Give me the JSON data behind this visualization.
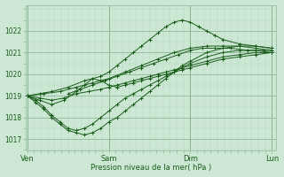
{
  "title": "",
  "xlabel": "Pression niveau de la mer( hPa )",
  "ylabel": "",
  "bg_color": "#cce8d4",
  "grid_color_major": "#8cb898",
  "grid_color_minor": "#aed4b6",
  "line_color": "#1a5c1a",
  "marker_color": "#1a5c1a",
  "ylim": [
    1016.5,
    1023.2
  ],
  "yticks": [
    1017,
    1018,
    1019,
    1020,
    1021,
    1022
  ],
  "xticks": [
    0,
    1,
    2,
    3
  ],
  "xticklabels": [
    "Ven",
    "Sam",
    "Dim",
    "Lun"
  ],
  "series": [
    {
      "x": [
        0,
        0.1,
        0.2,
        0.3,
        0.4,
        0.5,
        0.6,
        0.7,
        0.8,
        0.9,
        1.0,
        1.1,
        1.2,
        1.3,
        1.4,
        1.5,
        1.6,
        1.7,
        1.8,
        1.9,
        2.0,
        2.2,
        2.4,
        2.6,
        2.8,
        3.0
      ],
      "y": [
        1019.0,
        1018.7,
        1018.4,
        1018.0,
        1017.7,
        1017.4,
        1017.3,
        1017.2,
        1017.3,
        1017.5,
        1017.8,
        1018.0,
        1018.3,
        1018.6,
        1018.9,
        1019.2,
        1019.5,
        1019.8,
        1020.1,
        1020.4,
        1020.6,
        1021.0,
        1021.2,
        1021.3,
        1021.3,
        1021.2
      ]
    },
    {
      "x": [
        0,
        0.1,
        0.2,
        0.3,
        0.4,
        0.5,
        0.6,
        0.7,
        0.8,
        0.9,
        1.0,
        1.1,
        1.2,
        1.3,
        1.4,
        1.5,
        1.6,
        1.7,
        1.8,
        1.9,
        2.0,
        2.2,
        2.4,
        2.6,
        2.8,
        3.0
      ],
      "y": [
        1019.0,
        1018.8,
        1018.5,
        1018.1,
        1017.8,
        1017.5,
        1017.4,
        1017.5,
        1017.7,
        1018.0,
        1018.3,
        1018.6,
        1018.9,
        1019.1,
        1019.3,
        1019.5,
        1019.7,
        1019.9,
        1020.1,
        1020.3,
        1020.5,
        1020.8,
        1021.0,
        1021.1,
        1021.1,
        1021.0
      ]
    },
    {
      "x": [
        0,
        0.15,
        0.3,
        0.45,
        0.6,
        0.7,
        0.8,
        0.9,
        1.0,
        1.1,
        1.2,
        1.3,
        1.4,
        1.5,
        1.6,
        1.7,
        1.8,
        1.9,
        2.0,
        2.2,
        2.4,
        2.6,
        2.8,
        3.0
      ],
      "y": [
        1019.0,
        1018.8,
        1018.6,
        1018.8,
        1019.2,
        1019.5,
        1019.8,
        1019.7,
        1019.5,
        1019.4,
        1019.5,
        1019.6,
        1019.7,
        1019.8,
        1019.9,
        1020.0,
        1020.1,
        1020.2,
        1020.3,
        1020.5,
        1020.7,
        1020.8,
        1020.9,
        1021.0
      ]
    },
    {
      "x": [
        0,
        0.15,
        0.3,
        0.45,
        0.6,
        0.75,
        0.9,
        1.0,
        1.1,
        1.2,
        1.3,
        1.4,
        1.5,
        1.6,
        1.7,
        1.8,
        1.9,
        2.0,
        2.2,
        2.4,
        2.6,
        2.8,
        3.0
      ],
      "y": [
        1019.0,
        1018.9,
        1018.8,
        1018.9,
        1019.1,
        1019.2,
        1019.3,
        1019.4,
        1019.5,
        1019.6,
        1019.7,
        1019.8,
        1019.9,
        1020.0,
        1020.1,
        1020.2,
        1020.3,
        1020.4,
        1020.6,
        1020.8,
        1020.9,
        1021.0,
        1021.0
      ]
    },
    {
      "x": [
        0,
        0.15,
        0.3,
        0.5,
        0.7,
        0.9,
        1.0,
        1.1,
        1.2,
        1.3,
        1.4,
        1.5,
        1.6,
        1.7,
        1.8,
        1.9,
        2.0,
        2.1,
        2.2,
        2.3,
        2.4,
        2.6,
        2.8,
        3.0
      ],
      "y": [
        1019.0,
        1019.1,
        1019.2,
        1019.4,
        1019.7,
        1019.9,
        1020.1,
        1020.4,
        1020.7,
        1021.0,
        1021.3,
        1021.6,
        1021.9,
        1022.2,
        1022.4,
        1022.5,
        1022.4,
        1022.2,
        1022.0,
        1021.8,
        1021.6,
        1021.4,
        1021.3,
        1021.2
      ]
    },
    {
      "x": [
        0,
        0.2,
        0.4,
        0.6,
        0.8,
        1.0,
        1.2,
        1.4,
        1.6,
        1.8,
        2.0,
        2.2,
        2.4,
        2.6,
        2.8,
        3.0
      ],
      "y": [
        1019.0,
        1019.1,
        1019.2,
        1019.4,
        1019.6,
        1019.8,
        1020.1,
        1020.4,
        1020.7,
        1021.0,
        1021.2,
        1021.3,
        1021.3,
        1021.3,
        1021.2,
        1021.1
      ]
    },
    {
      "x": [
        0.5,
        0.65,
        0.8,
        0.95,
        1.1,
        1.25,
        1.4,
        1.55,
        1.7,
        1.85,
        2.0,
        2.15,
        2.3,
        2.5,
        2.7,
        2.9,
        3.0
      ],
      "y": [
        1019.1,
        1019.3,
        1019.5,
        1019.7,
        1019.9,
        1020.1,
        1020.3,
        1020.5,
        1020.7,
        1020.9,
        1021.1,
        1021.2,
        1021.2,
        1021.2,
        1021.1,
        1021.1,
        1021.1
      ]
    }
  ]
}
